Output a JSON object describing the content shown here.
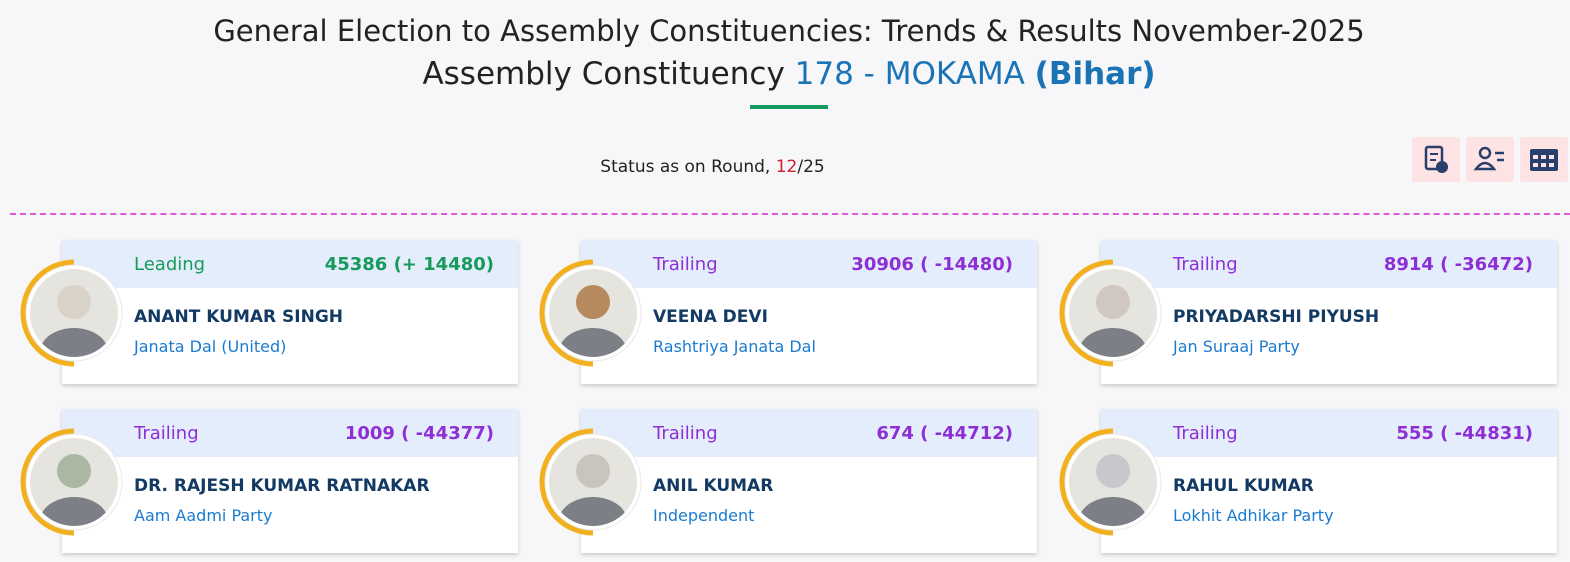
{
  "header": {
    "title": "General Election to Assembly Constituencies: Trends & Results November-2025",
    "subtitle_prefix": "Assembly Constituency",
    "constituency": "178 - MOKAMA",
    "state": "(Bihar)"
  },
  "status": {
    "label": "Status as on Round,",
    "round": "12",
    "total": "/25"
  },
  "candidates": [
    {
      "status": "Leading",
      "votes": "45386 (+ 14480)",
      "name": "ANANT KUMAR SINGH",
      "party": "Janata Dal (United)"
    },
    {
      "status": "Trailing",
      "votes": "30906 ( -14480)",
      "name": "VEENA DEVI",
      "party": "Rashtriya Janata Dal"
    },
    {
      "status": "Trailing",
      "votes": "8914 ( -36472)",
      "name": "PRIYADARSHI PIYUSH",
      "party": "Jan Suraaj Party"
    },
    {
      "status": "Trailing",
      "votes": "1009 ( -44377)",
      "name": "DR. RAJESH KUMAR RATNAKAR",
      "party": "Aam Aadmi Party"
    },
    {
      "status": "Trailing",
      "votes": "674 ( -44712)",
      "name": "ANIL KUMAR",
      "party": "Independent"
    },
    {
      "status": "Trailing",
      "votes": "555 ( -44831)",
      "name": "RAHUL KUMAR",
      "party": "Lokhit Adhikar Party"
    }
  ]
}
